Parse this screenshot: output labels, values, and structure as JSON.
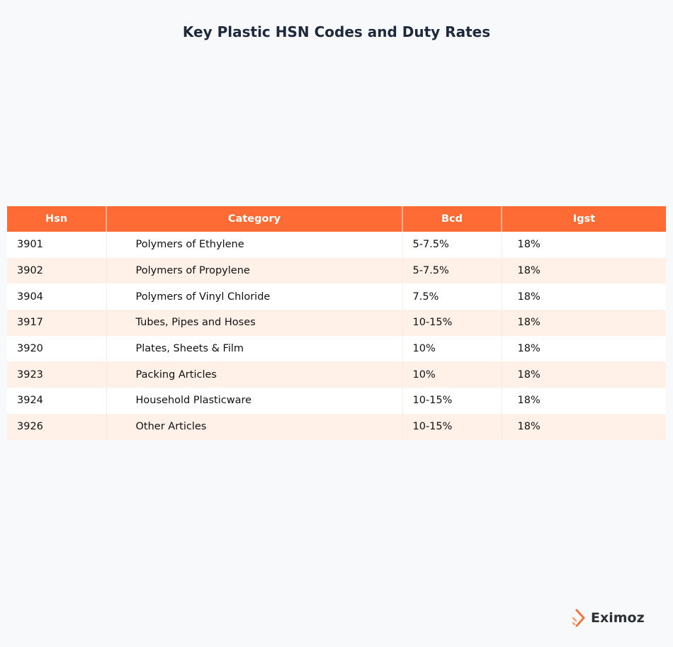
{
  "title": "Key Plastic HSN Codes and Duty Rates",
  "table": {
    "columns": [
      "Hsn",
      "Category",
      "Bcd",
      "Igst"
    ],
    "rows": [
      [
        "3901",
        "Polymers of Ethylene",
        "5-7.5%",
        "18%"
      ],
      [
        "3902",
        "Polymers of Propylene",
        "5-7.5%",
        "18%"
      ],
      [
        "3904",
        "Polymers of Vinyl Chloride",
        "7.5%",
        "18%"
      ],
      [
        "3917",
        "Tubes, Pipes and Hoses",
        "10-15%",
        "18%"
      ],
      [
        "3920",
        "Plates, Sheets & Film",
        "10%",
        "18%"
      ],
      [
        "3923",
        "Packing Articles",
        "10%",
        "18%"
      ],
      [
        "3924",
        "Household Plasticware",
        "10-15%",
        "18%"
      ],
      [
        "3926",
        "Other Articles",
        "10-15%",
        "18%"
      ]
    ]
  },
  "logo": "Eximoz"
}
